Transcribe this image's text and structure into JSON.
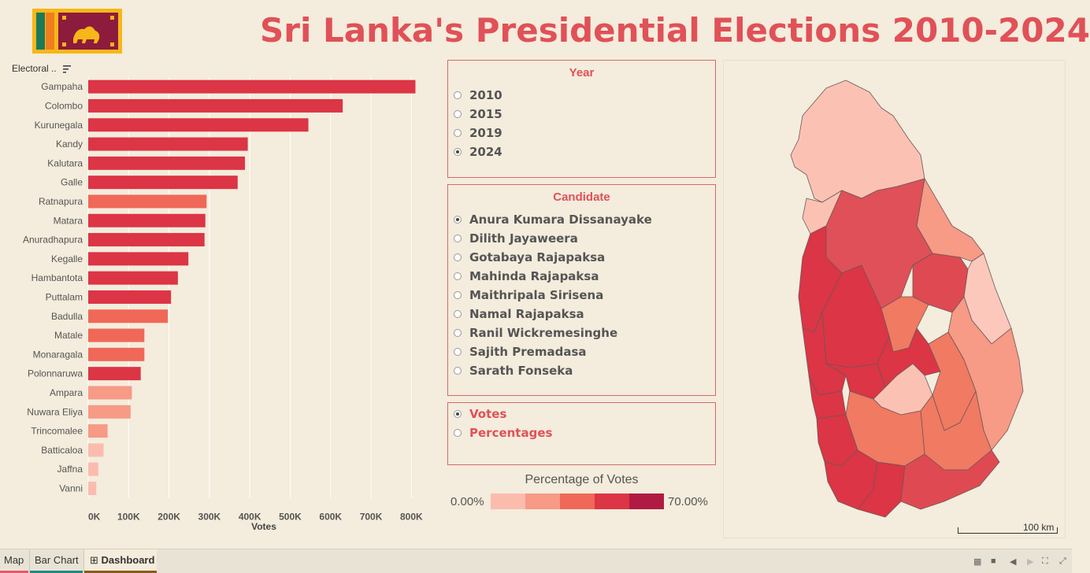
{
  "title": "Sri Lanka's Presidential Elections 2010-2024",
  "bar_header": "Electoral ..",
  "year_panel": {
    "title": "Year",
    "options": [
      "2010",
      "2015",
      "2019",
      "2024"
    ],
    "selected": 3
  },
  "candidate_panel": {
    "title": "Candidate",
    "options": [
      "Anura Kumara Dissanayake",
      "Dilith Jayaweera",
      "Gotabaya Rajapaksa",
      "Mahinda Rajapaksa",
      "Maithripala Sirisena",
      "Namal Rajapaksa",
      "Ranil Wickremesinghe",
      "Sajith Premadasa",
      "Sarath Fonseka"
    ],
    "selected": 0
  },
  "metric_panel": {
    "options": [
      "Votes",
      "Percentages"
    ],
    "selected": 0
  },
  "legend": {
    "title": "Percentage of Votes",
    "min": "0.00%",
    "max": "70.00%",
    "colors": [
      "#fbbcae",
      "#f79a86",
      "#f06857",
      "#dc3545",
      "#b01b43"
    ]
  },
  "map": {
    "scale_label": "100 km"
  },
  "tabs": [
    "Map",
    "Bar Chart",
    "Dashboard"
  ],
  "chart_data": {
    "type": "bar",
    "orientation": "horizontal",
    "xlabel": "Votes",
    "xlim": [
      0,
      850000
    ],
    "xticks": [
      0,
      100000,
      200000,
      300000,
      400000,
      500000,
      600000,
      700000,
      800000
    ],
    "xtick_labels": [
      "0K",
      "100K",
      "200K",
      "300K",
      "400K",
      "500K",
      "600K",
      "700K",
      "800K"
    ],
    "categories": [
      "Gampaha",
      "Colombo",
      "Kurunegala",
      "Kandy",
      "Kalutara",
      "Galle",
      "Ratnapura",
      "Matara",
      "Anuradhapura",
      "Kegalle",
      "Hambantota",
      "Puttalam",
      "Badulla",
      "Matale",
      "Monaragala",
      "Polonnaruwa",
      "Ampara",
      "Nuwara Eliya",
      "Trincomalee",
      "Batticaloa",
      "Jaffna",
      "Vanni"
    ],
    "values": [
      810000,
      630000,
      545000,
      395000,
      388000,
      370000,
      293000,
      290000,
      288000,
      248000,
      222000,
      205000,
      197000,
      139000,
      139000,
      130000,
      108000,
      105000,
      48000,
      38000,
      25000,
      20000
    ],
    "colors": [
      "#dc3545",
      "#dc3545",
      "#dc3545",
      "#dc3545",
      "#dc3545",
      "#dc3545",
      "#f06857",
      "#dc3545",
      "#dc3545",
      "#dc3545",
      "#dc3545",
      "#dc3545",
      "#f06857",
      "#f06857",
      "#f06857",
      "#dc3545",
      "#f79a86",
      "#f79a86",
      "#f79a86",
      "#fbbcae",
      "#fbbcae",
      "#fbbcae"
    ],
    "grid": true
  }
}
